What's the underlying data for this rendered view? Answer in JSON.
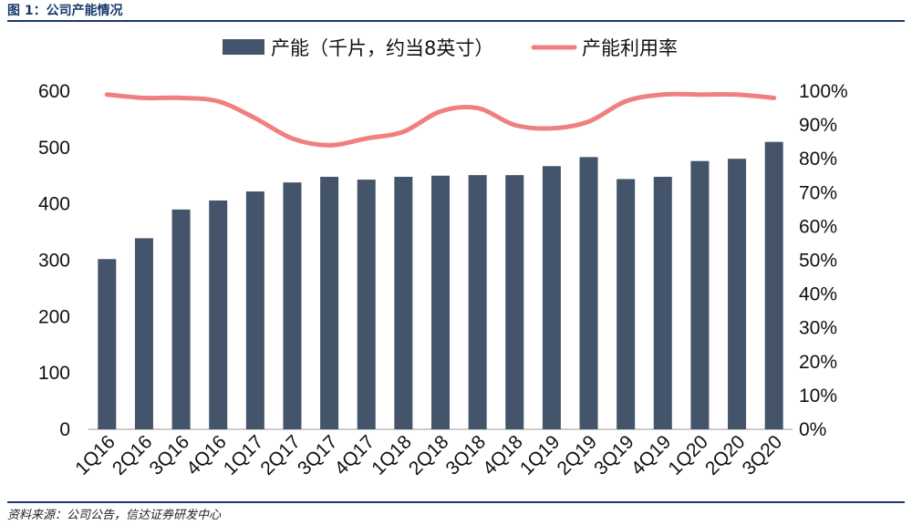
{
  "figure": {
    "title": "图 1：公司产能情况",
    "source": "资料来源：公司公告，信达证券研发中心"
  },
  "colors": {
    "bar": "#44546a",
    "line": "#f08080",
    "frame": "#1a3a6b"
  },
  "chart_data": {
    "type": "bar",
    "title": "",
    "xlabel": "",
    "ylabel": "",
    "categories": [
      "1Q16",
      "2Q16",
      "3Q16",
      "4Q16",
      "1Q17",
      "2Q17",
      "3Q17",
      "4Q17",
      "1Q18",
      "2Q18",
      "3Q18",
      "4Q18",
      "1Q19",
      "2Q19",
      "3Q19",
      "4Q19",
      "1Q20",
      "2Q20",
      "3Q20"
    ],
    "series": [
      {
        "name": "产能（千片，约当8英寸）",
        "type": "bar",
        "axis": "left",
        "values": [
          302,
          339,
          390,
          406,
          422,
          438,
          448,
          443,
          448,
          450,
          451,
          451,
          467,
          483,
          444,
          448,
          476,
          480,
          510
        ]
      },
      {
        "name": "产能利用率",
        "type": "line",
        "axis": "right",
        "values": [
          0.99,
          0.98,
          0.98,
          0.97,
          0.92,
          0.86,
          0.84,
          0.86,
          0.88,
          0.94,
          0.95,
          0.9,
          0.89,
          0.91,
          0.97,
          0.99,
          0.99,
          0.99,
          0.98
        ]
      }
    ],
    "ylim": [
      0,
      600
    ],
    "y_ticks": [
      "0",
      "100",
      "200",
      "300",
      "400",
      "500",
      "600"
    ],
    "y2lim": [
      0,
      1
    ],
    "y2_ticks": [
      "0%",
      "10%",
      "20%",
      "30%",
      "40%",
      "50%",
      "60%",
      "70%",
      "80%",
      "90%",
      "100%"
    ],
    "legend": "top-center",
    "grid": false
  }
}
